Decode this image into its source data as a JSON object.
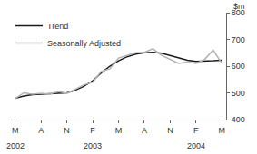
{
  "chart_data": {
    "type": "line",
    "categories": [
      "M",
      null,
      null,
      "A",
      null,
      null,
      "N",
      null,
      null,
      "F",
      null,
      null,
      "M",
      null,
      null,
      "A",
      null,
      null,
      "N",
      null,
      null,
      "F",
      null,
      null,
      "M"
    ],
    "series": [
      {
        "name": "Trend",
        "color": "#1a1a1a",
        "values": [
          480,
          488,
          493,
          495,
          496,
          498,
          500,
          510,
          525,
          545,
          575,
          600,
          620,
          635,
          645,
          650,
          652,
          648,
          640,
          630,
          622,
          618,
          618,
          620,
          622
        ]
      },
      {
        "name": "Seasonally Adjusted",
        "color": "#b3b3b3",
        "values": [
          478,
          500,
          495,
          498,
          495,
          505,
          498,
          515,
          530,
          540,
          580,
          590,
          630,
          640,
          650,
          652,
          665,
          640,
          625,
          610,
          615,
          610,
          625,
          660,
          610
        ]
      }
    ],
    "ylabel": "$m",
    "ylim": [
      400,
      800
    ],
    "yticks": [
      400,
      500,
      600,
      700,
      800
    ],
    "annotations": [
      {
        "text": "2002",
        "x": 0
      },
      {
        "text": "2003",
        "x": 9
      },
      {
        "text": "2004",
        "x": 21
      }
    ],
    "grid": false,
    "legend": "top-left"
  }
}
